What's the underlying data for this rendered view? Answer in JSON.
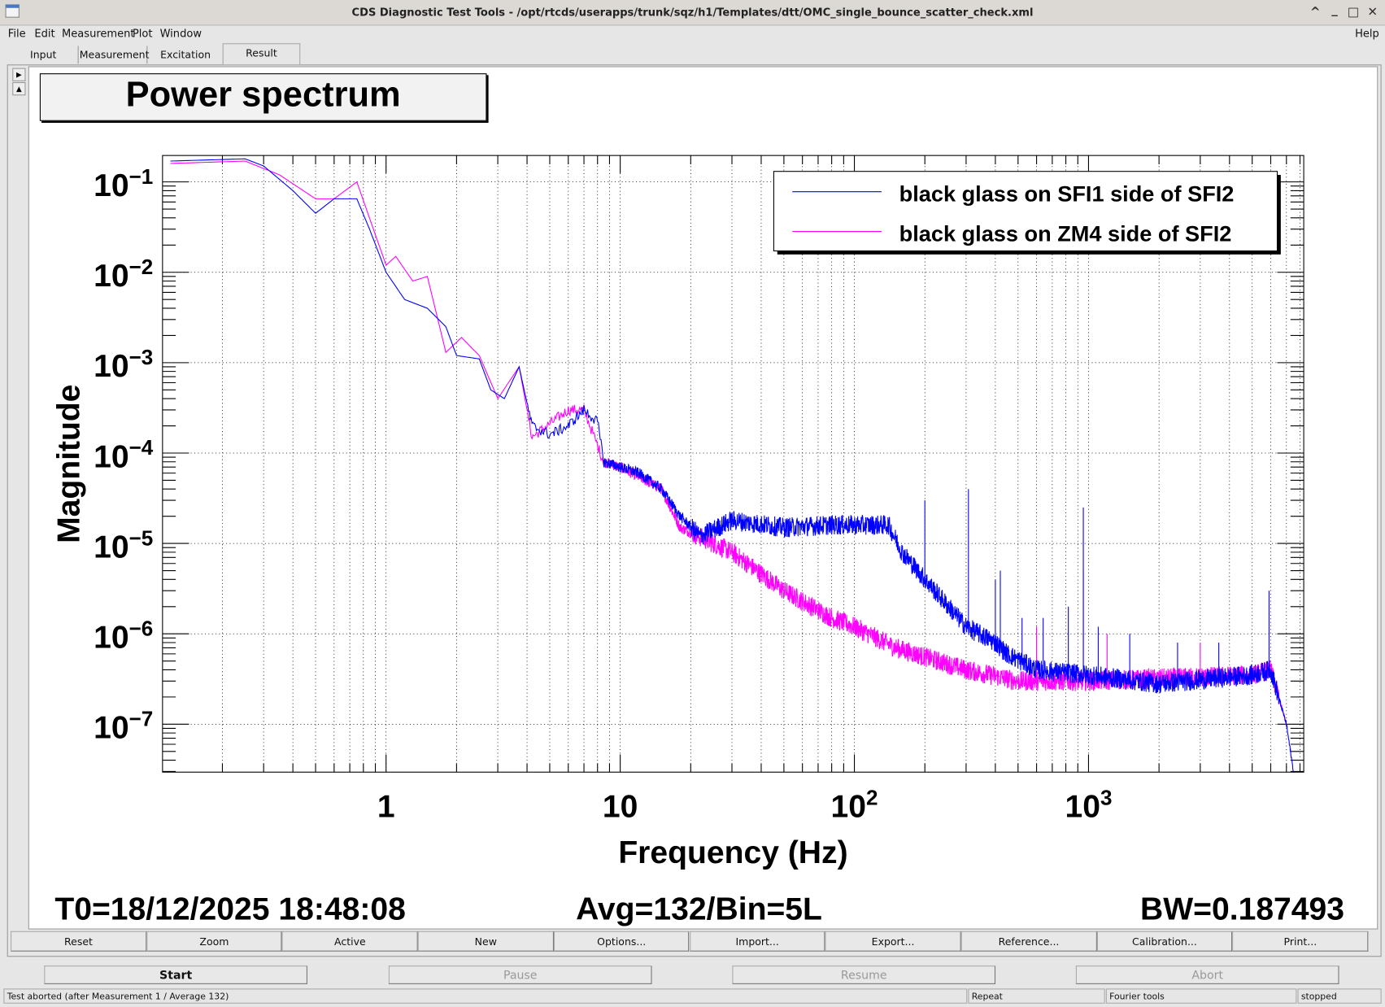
{
  "window": {
    "title": "CDS Diagnostic Test Tools - /opt/rtcds/userapps/trunk/sqz/h1/Templates/dtt/OMC_single_bounce_scatter_check.xml"
  },
  "menu": {
    "file": "File",
    "edit": "Edit",
    "measurement": "Measurement",
    "plot": "Plot",
    "window": "Window",
    "help": "Help"
  },
  "tabs": [
    "Input",
    "Measurement",
    "Excitation",
    "Result"
  ],
  "plot_title": "Power spectrum",
  "info": {
    "t0": "T0=18/12/2025 18:48:08",
    "avg": "Avg=132/Bin=5L",
    "bw": "BW=0.187493"
  },
  "plot_buttons": [
    "Reset",
    "Zoom",
    "Active",
    "New",
    "Options...",
    "Import...",
    "Export...",
    "Reference...",
    "Calibration...",
    "Print..."
  ],
  "control_buttons": [
    "Start",
    "Pause",
    "Resume",
    "Abort"
  ],
  "status": {
    "message": "Test aborted (after Measurement 1 / Average 132)",
    "repeat": "Repeat",
    "tools": "Fourier tools",
    "state": "stopped"
  },
  "chart_data": {
    "type": "line",
    "xlabel": "Frequency (Hz)",
    "ylabel": "Magnitude",
    "xscale": "log",
    "yscale": "log",
    "xlim": [
      0.111,
      8300
    ],
    "ylim": [
      0.196,
      2.95e-08
    ],
    "x_ticks": [
      {
        "base": "1",
        "exp": ""
      },
      {
        "base": "10",
        "exp": ""
      },
      {
        "base": "10",
        "exp": "2"
      },
      {
        "base": "10",
        "exp": "3"
      }
    ],
    "x_tick_values": [
      1,
      10,
      100,
      1000
    ],
    "y_ticks": [
      {
        "base": "10",
        "exp": "−1"
      },
      {
        "base": "10",
        "exp": "−2"
      },
      {
        "base": "10",
        "exp": "−3"
      },
      {
        "base": "10",
        "exp": "−4"
      },
      {
        "base": "10",
        "exp": "−5"
      },
      {
        "base": "10",
        "exp": "−6"
      },
      {
        "base": "10",
        "exp": "−7"
      }
    ],
    "y_tick_values": [
      0.1,
      0.01,
      0.001,
      0.0001,
      1e-05,
      1e-06,
      1e-07
    ],
    "grid": true,
    "legend_position": "top-right",
    "series": [
      {
        "name": "black glass on SFI1 side of SFI2",
        "color": "#0000ff",
        "points": [
          [
            0.12,
            0.17
          ],
          [
            0.25,
            0.18
          ],
          [
            0.3,
            0.15
          ],
          [
            0.4,
            0.08
          ],
          [
            0.5,
            0.045
          ],
          [
            0.6,
            0.065
          ],
          [
            0.75,
            0.065
          ],
          [
            0.85,
            0.03
          ],
          [
            1.0,
            0.01
          ],
          [
            1.2,
            0.005
          ],
          [
            1.5,
            0.004
          ],
          [
            1.8,
            0.0025
          ],
          [
            2.0,
            0.0012
          ],
          [
            2.5,
            0.0011
          ],
          [
            2.8,
            0.0005
          ],
          [
            3.2,
            0.0004
          ],
          [
            3.7,
            0.0009
          ],
          [
            4.2,
            0.0002
          ],
          [
            5,
            0.00016
          ],
          [
            6,
            0.0002
          ],
          [
            7,
            0.0003
          ],
          [
            8,
            0.00022
          ],
          [
            8.5,
            8e-05
          ],
          [
            10,
            7e-05
          ],
          [
            12,
            6e-05
          ],
          [
            15,
            4e-05
          ],
          [
            18,
            2e-05
          ],
          [
            22,
            1.2e-05
          ],
          [
            30,
            1.8e-05
          ],
          [
            50,
            1.5e-05
          ],
          [
            80,
            1.6e-05
          ],
          [
            140,
            1.6e-05
          ],
          [
            160,
            8e-06
          ],
          [
            200,
            4e-06
          ],
          [
            300,
            1.2e-06
          ],
          [
            400,
            8e-07
          ],
          [
            450,
            6e-07
          ],
          [
            600,
            4e-07
          ],
          [
            1000,
            3.5e-07
          ],
          [
            2000,
            2.8e-07
          ],
          [
            5000,
            3.5e-07
          ],
          [
            6000,
            4e-07
          ],
          [
            7000,
            1e-07
          ],
          [
            7500,
            3e-08
          ]
        ],
        "peaks": [
          [
            200,
            3e-05
          ],
          [
            307,
            4e-05
          ],
          [
            400,
            4e-06
          ],
          [
            420,
            5e-06
          ],
          [
            520,
            1.5e-06
          ],
          [
            640,
            1.5e-06
          ],
          [
            820,
            2e-06
          ],
          [
            950,
            2.5e-05
          ],
          [
            1100,
            1.2e-06
          ],
          [
            1500,
            1e-06
          ],
          [
            2400,
            8e-07
          ],
          [
            3600,
            8e-07
          ],
          [
            5900,
            3e-06
          ]
        ]
      },
      {
        "name": "black glass on ZM4 side of SFI2",
        "color": "#ff00ff",
        "points": [
          [
            0.12,
            0.16
          ],
          [
            0.25,
            0.17
          ],
          [
            0.35,
            0.12
          ],
          [
            0.5,
            0.065
          ],
          [
            0.6,
            0.065
          ],
          [
            0.75,
            0.1
          ],
          [
            1.0,
            0.012
          ],
          [
            1.1,
            0.015
          ],
          [
            1.3,
            0.008
          ],
          [
            1.5,
            0.009
          ],
          [
            1.8,
            0.0013
          ],
          [
            2.1,
            0.0019
          ],
          [
            2.5,
            0.0012
          ],
          [
            3,
            0.0004
          ],
          [
            3.7,
            0.0009
          ],
          [
            4.2,
            0.00015
          ],
          [
            6,
            0.0003
          ],
          [
            7,
            0.0003
          ],
          [
            8.5,
            8e-05
          ],
          [
            10,
            7e-05
          ],
          [
            15,
            4e-05
          ],
          [
            18,
            1.5e-05
          ],
          [
            25,
            1e-05
          ],
          [
            30,
            8e-06
          ],
          [
            50,
            3e-06
          ],
          [
            80,
            1.5e-06
          ],
          [
            100,
            1.2e-06
          ],
          [
            150,
            7e-07
          ],
          [
            300,
            4e-07
          ],
          [
            500,
            3e-07
          ],
          [
            1000,
            3e-07
          ],
          [
            5000,
            3.5e-07
          ],
          [
            6000,
            4e-07
          ],
          [
            7000,
            1e-07
          ]
        ],
        "peaks": [
          [
            600,
            1.2e-06
          ],
          [
            950,
            5e-06
          ],
          [
            1200,
            1e-06
          ],
          [
            3000,
            8e-07
          ]
        ]
      }
    ]
  }
}
